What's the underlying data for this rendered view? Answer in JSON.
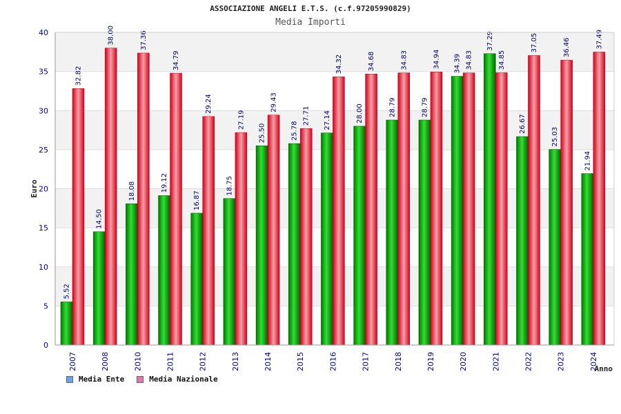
{
  "title": "ASSOCIAZIONE ANGELI E.T.S. (c.f.97205990829)",
  "subtitle": "Media Importi",
  "legend": [
    {
      "label": "Media Ente",
      "color": "#6aa4e8"
    },
    {
      "label": "Media Nazionale",
      "color": "#e07aa8"
    }
  ],
  "chart_data": {
    "type": "bar",
    "title": "ASSOCIAZIONE ANGELI E.T.S. (c.f.97205990829)",
    "subtitle": "Media Importi",
    "xlabel": "Anno",
    "ylabel": "Euro",
    "ylim": [
      0,
      40
    ],
    "yticks": [
      0,
      5,
      10,
      15,
      20,
      25,
      30,
      35,
      40
    ],
    "grid": true,
    "legend_position": "bottom-left",
    "categories": [
      "2007",
      "2008",
      "2010",
      "2011",
      "2012",
      "2013",
      "2014",
      "2015",
      "2016",
      "2017",
      "2018",
      "2019",
      "2020",
      "2021",
      "2022",
      "2023",
      "2024"
    ],
    "series": [
      {
        "name": "Media Ente",
        "color": "#00aa00",
        "values": [
          5.52,
          14.5,
          18.08,
          19.12,
          16.87,
          18.75,
          25.5,
          25.78,
          27.14,
          28.0,
          28.79,
          28.79,
          34.39,
          37.29,
          26.67,
          25.03,
          21.94
        ],
        "labels": [
          "5.52",
          "14.50",
          "18.08",
          "19.12",
          "16.87",
          "18.75",
          "25.50",
          "25.78",
          "27.14",
          "28.00",
          "28.79",
          "28.79",
          "34.39",
          "37.29",
          "26.67",
          "25.03",
          "21.94"
        ]
      },
      {
        "name": "Media Nazionale",
        "color": "#ee2233",
        "values": [
          32.82,
          38.0,
          37.36,
          34.79,
          29.24,
          27.19,
          29.43,
          27.71,
          34.32,
          34.68,
          34.83,
          34.94,
          34.83,
          34.85,
          37.05,
          36.46,
          37.49
        ],
        "labels": [
          "32.82",
          "38.00",
          "37.36",
          "34.79",
          "29.24",
          "27.19",
          "29.43",
          "27.71",
          "34.32",
          "34.68",
          "34.83",
          "34.94",
          "34.83",
          "34.85",
          "37.05",
          "36.46",
          "37.49"
        ]
      }
    ]
  }
}
